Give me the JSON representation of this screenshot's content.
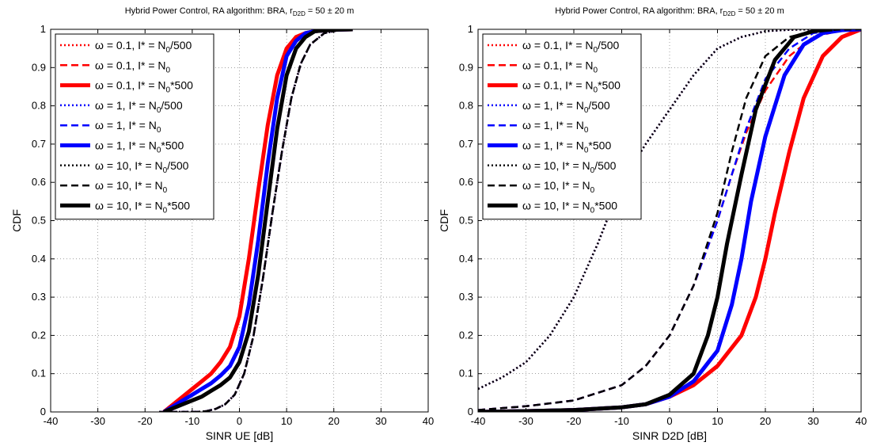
{
  "chart_data": [
    {
      "type": "line",
      "title": "Hybrid Power Control, RA algorithm: BRA, r",
      "title_sub": "D2D",
      "title_tail": " = 50 ± 20 m",
      "xlabel": "SINR UE [dB]",
      "ylabel": "CDF",
      "xlim": [
        -40,
        40
      ],
      "ylim": [
        0,
        1
      ],
      "xticks": [
        "-40",
        "-30",
        "-20",
        "-10",
        "0",
        "10",
        "20",
        "30",
        "40"
      ],
      "yticks": [
        "0",
        "0.1",
        "0.2",
        "0.3",
        "0.4",
        "0.5",
        "0.6",
        "0.7",
        "0.8",
        "0.9",
        "1"
      ],
      "grid": true,
      "legend_position": "top-left",
      "series": [
        {
          "name": "ω = 0.1, I* = N0/500",
          "color": "#ff0000",
          "style": "dotted",
          "width": 2.5,
          "x": [
            -17,
            -15,
            -13,
            -11,
            -9,
            -7,
            -5,
            -3,
            -1,
            1,
            3,
            5,
            7,
            9,
            11,
            13,
            15,
            18,
            22
          ],
          "y": [
            0,
            0,
            0,
            0,
            0,
            0.002,
            0.008,
            0.02,
            0.045,
            0.1,
            0.2,
            0.35,
            0.52,
            0.68,
            0.82,
            0.91,
            0.96,
            0.99,
            1
          ]
        },
        {
          "name": "ω = 0.1, I* = N0",
          "color": "#ff0000",
          "style": "dashed",
          "width": 2.5,
          "x": [
            -17,
            -15,
            -13,
            -11,
            -9,
            -7,
            -5,
            -3,
            -1,
            1,
            3,
            5,
            7,
            9,
            11,
            13,
            15,
            18,
            22
          ],
          "y": [
            0,
            0,
            0,
            0,
            0,
            0.002,
            0.008,
            0.02,
            0.045,
            0.1,
            0.2,
            0.35,
            0.52,
            0.68,
            0.82,
            0.91,
            0.96,
            0.99,
            1
          ]
        },
        {
          "name": "ω = 0.1, I* = N0*500",
          "color": "#ff0000",
          "style": "solid",
          "width": 5,
          "x": [
            -16,
            -14,
            -12,
            -10,
            -8,
            -6,
            -4,
            -2,
            0,
            2,
            4,
            6,
            8,
            10,
            12,
            14,
            16,
            20,
            24
          ],
          "y": [
            0,
            0.02,
            0.04,
            0.06,
            0.08,
            0.1,
            0.13,
            0.17,
            0.25,
            0.4,
            0.58,
            0.75,
            0.88,
            0.95,
            0.98,
            0.99,
            0.995,
            0.999,
            1
          ]
        },
        {
          "name": "ω = 1, I* = N0/500",
          "color": "#0000ff",
          "style": "dotted",
          "width": 2.5,
          "x": [
            -17,
            -15,
            -13,
            -11,
            -9,
            -7,
            -5,
            -3,
            -1,
            1,
            3,
            5,
            7,
            9,
            11,
            13,
            15,
            18,
            22
          ],
          "y": [
            0,
            0,
            0,
            0,
            0,
            0.002,
            0.008,
            0.02,
            0.045,
            0.1,
            0.2,
            0.35,
            0.52,
            0.68,
            0.82,
            0.91,
            0.96,
            0.99,
            1
          ]
        },
        {
          "name": "ω = 1, I* = N0",
          "color": "#0000ff",
          "style": "dashed",
          "width": 2.5,
          "x": [
            -17,
            -15,
            -13,
            -11,
            -9,
            -7,
            -5,
            -3,
            -1,
            1,
            3,
            5,
            7,
            9,
            11,
            13,
            15,
            18,
            22
          ],
          "y": [
            0,
            0,
            0,
            0,
            0,
            0.002,
            0.008,
            0.02,
            0.045,
            0.1,
            0.2,
            0.35,
            0.52,
            0.68,
            0.82,
            0.91,
            0.96,
            0.99,
            1
          ]
        },
        {
          "name": "ω = 1, I* = N0*500",
          "color": "#0000ff",
          "style": "solid",
          "width": 5,
          "x": [
            -16,
            -14,
            -12,
            -10,
            -8,
            -6,
            -4,
            -2,
            0,
            2,
            4,
            6,
            8,
            10,
            12,
            14,
            16,
            20,
            24
          ],
          "y": [
            0,
            0.015,
            0.03,
            0.045,
            0.06,
            0.075,
            0.095,
            0.12,
            0.17,
            0.28,
            0.45,
            0.65,
            0.82,
            0.93,
            0.97,
            0.99,
            0.995,
            0.999,
            1
          ]
        },
        {
          "name": "ω = 10, I* = N0/500",
          "color": "#000000",
          "style": "dotted",
          "width": 2.5,
          "x": [
            -17,
            -15,
            -13,
            -11,
            -9,
            -7,
            -5,
            -3,
            -1,
            1,
            3,
            5,
            7,
            9,
            11,
            13,
            15,
            18,
            22
          ],
          "y": [
            0,
            0,
            0,
            0,
            0,
            0.002,
            0.008,
            0.02,
            0.045,
            0.1,
            0.2,
            0.35,
            0.52,
            0.68,
            0.82,
            0.91,
            0.96,
            0.99,
            1
          ]
        },
        {
          "name": "ω = 10, I* = N0",
          "color": "#000000",
          "style": "dashed",
          "width": 2.5,
          "x": [
            -17,
            -15,
            -13,
            -11,
            -9,
            -7,
            -5,
            -3,
            -1,
            1,
            3,
            5,
            7,
            9,
            11,
            13,
            15,
            18,
            22
          ],
          "y": [
            0,
            0,
            0,
            0,
            0,
            0.002,
            0.008,
            0.02,
            0.045,
            0.1,
            0.2,
            0.35,
            0.52,
            0.68,
            0.82,
            0.91,
            0.96,
            0.99,
            1
          ]
        },
        {
          "name": "ω = 10, I* = N0*500",
          "color": "#000000",
          "style": "solid",
          "width": 5,
          "x": [
            -16,
            -14,
            -12,
            -10,
            -8,
            -6,
            -4,
            -2,
            0,
            2,
            4,
            6,
            8,
            10,
            12,
            14,
            16,
            20,
            24
          ],
          "y": [
            0,
            0.01,
            0.02,
            0.03,
            0.04,
            0.055,
            0.07,
            0.09,
            0.13,
            0.21,
            0.36,
            0.55,
            0.74,
            0.88,
            0.95,
            0.98,
            0.995,
            0.999,
            1
          ]
        }
      ]
    },
    {
      "type": "line",
      "title": "Hybrid Power Control, RA algorithm: BRA, r",
      "title_sub": "D2D",
      "title_tail": " = 50 ± 20 m",
      "xlabel": "SINR D2D [dB]",
      "ylabel": "CDF",
      "xlim": [
        -40,
        40
      ],
      "ylim": [
        0,
        1
      ],
      "xticks": [
        "-40",
        "-30",
        "-20",
        "-10",
        "0",
        "10",
        "20",
        "30",
        "40"
      ],
      "yticks": [
        "0",
        "0.1",
        "0.2",
        "0.3",
        "0.4",
        "0.5",
        "0.6",
        "0.7",
        "0.8",
        "0.9",
        "1"
      ],
      "grid": true,
      "legend_position": "top-left",
      "series": [
        {
          "name": "ω = 0.1, I* = N0/500",
          "color": "#ff0000",
          "style": "dotted",
          "width": 2.5,
          "x": [
            -40,
            -35,
            -30,
            -25,
            -20,
            -15,
            -10,
            -5,
            0,
            5,
            10,
            15,
            20,
            25,
            30
          ],
          "y": [
            0.06,
            0.09,
            0.13,
            0.2,
            0.3,
            0.44,
            0.6,
            0.7,
            0.79,
            0.88,
            0.95,
            0.98,
            0.995,
            0.999,
            1
          ]
        },
        {
          "name": "ω = 0.1, I* = N0",
          "color": "#ff0000",
          "style": "dashed",
          "width": 2.5,
          "x": [
            -40,
            -30,
            -20,
            -10,
            -5,
            0,
            5,
            10,
            13,
            16,
            20,
            25,
            30,
            35,
            40
          ],
          "y": [
            0.005,
            0.015,
            0.03,
            0.07,
            0.12,
            0.2,
            0.33,
            0.5,
            0.62,
            0.73,
            0.84,
            0.93,
            0.98,
            0.995,
            1
          ]
        },
        {
          "name": "ω = 0.1, I* = N0*500",
          "color": "#ff0000",
          "style": "solid",
          "width": 5,
          "x": [
            -40,
            -30,
            -20,
            -10,
            -5,
            0,
            5,
            10,
            15,
            18,
            20,
            22,
            25,
            28,
            32,
            36,
            40
          ],
          "y": [
            0,
            0.002,
            0.005,
            0.012,
            0.02,
            0.04,
            0.07,
            0.12,
            0.2,
            0.3,
            0.4,
            0.52,
            0.68,
            0.82,
            0.93,
            0.98,
            1
          ]
        },
        {
          "name": "ω = 1, I* = N0/500",
          "color": "#0000ff",
          "style": "dotted",
          "width": 2.5,
          "x": [
            -40,
            -35,
            -30,
            -25,
            -20,
            -15,
            -10,
            -5,
            0,
            5,
            10,
            15,
            20,
            25,
            30
          ],
          "y": [
            0.06,
            0.09,
            0.13,
            0.2,
            0.3,
            0.44,
            0.6,
            0.7,
            0.79,
            0.88,
            0.95,
            0.98,
            0.995,
            0.999,
            1
          ]
        },
        {
          "name": "ω = 1, I* = N0",
          "color": "#0000ff",
          "style": "dashed",
          "width": 2.5,
          "x": [
            -40,
            -30,
            -20,
            -10,
            -5,
            0,
            5,
            10,
            13,
            16,
            20,
            25,
            30,
            35,
            40
          ],
          "y": [
            0.005,
            0.015,
            0.03,
            0.07,
            0.12,
            0.2,
            0.33,
            0.5,
            0.62,
            0.74,
            0.87,
            0.95,
            0.99,
            0.998,
            1
          ]
        },
        {
          "name": "ω = 1, I* = N0*500",
          "color": "#0000ff",
          "style": "solid",
          "width": 5,
          "x": [
            -40,
            -30,
            -20,
            -10,
            -5,
            0,
            5,
            10,
            13,
            15,
            17,
            20,
            24,
            28,
            32,
            36,
            40
          ],
          "y": [
            0,
            0.002,
            0.005,
            0.012,
            0.02,
            0.04,
            0.08,
            0.16,
            0.28,
            0.4,
            0.55,
            0.72,
            0.88,
            0.96,
            0.99,
            0.998,
            1
          ]
        },
        {
          "name": "ω = 10, I* = N0/500",
          "color": "#000000",
          "style": "dotted",
          "width": 2.5,
          "x": [
            -40,
            -35,
            -30,
            -25,
            -20,
            -15,
            -10,
            -5,
            0,
            5,
            10,
            15,
            20,
            25,
            30
          ],
          "y": [
            0.06,
            0.09,
            0.13,
            0.2,
            0.3,
            0.44,
            0.6,
            0.7,
            0.79,
            0.88,
            0.95,
            0.98,
            0.995,
            0.999,
            1
          ]
        },
        {
          "name": "ω = 10, I* = N0",
          "color": "#000000",
          "style": "dashed",
          "width": 2.5,
          "x": [
            -40,
            -30,
            -20,
            -10,
            -5,
            0,
            5,
            10,
            13,
            16,
            20,
            25,
            30,
            35,
            40
          ],
          "y": [
            0.005,
            0.015,
            0.03,
            0.07,
            0.12,
            0.2,
            0.33,
            0.52,
            0.68,
            0.82,
            0.93,
            0.98,
            0.995,
            0.999,
            1
          ]
        },
        {
          "name": "ω = 10, I* = N0*500",
          "color": "#000000",
          "style": "solid",
          "width": 5,
          "x": [
            -40,
            -30,
            -20,
            -10,
            -5,
            0,
            5,
            8,
            10,
            12,
            15,
            18,
            22,
            26,
            30,
            34
          ],
          "y": [
            0,
            0.002,
            0.005,
            0.012,
            0.02,
            0.045,
            0.1,
            0.2,
            0.3,
            0.44,
            0.62,
            0.79,
            0.92,
            0.98,
            0.995,
            1
          ]
        }
      ]
    }
  ]
}
